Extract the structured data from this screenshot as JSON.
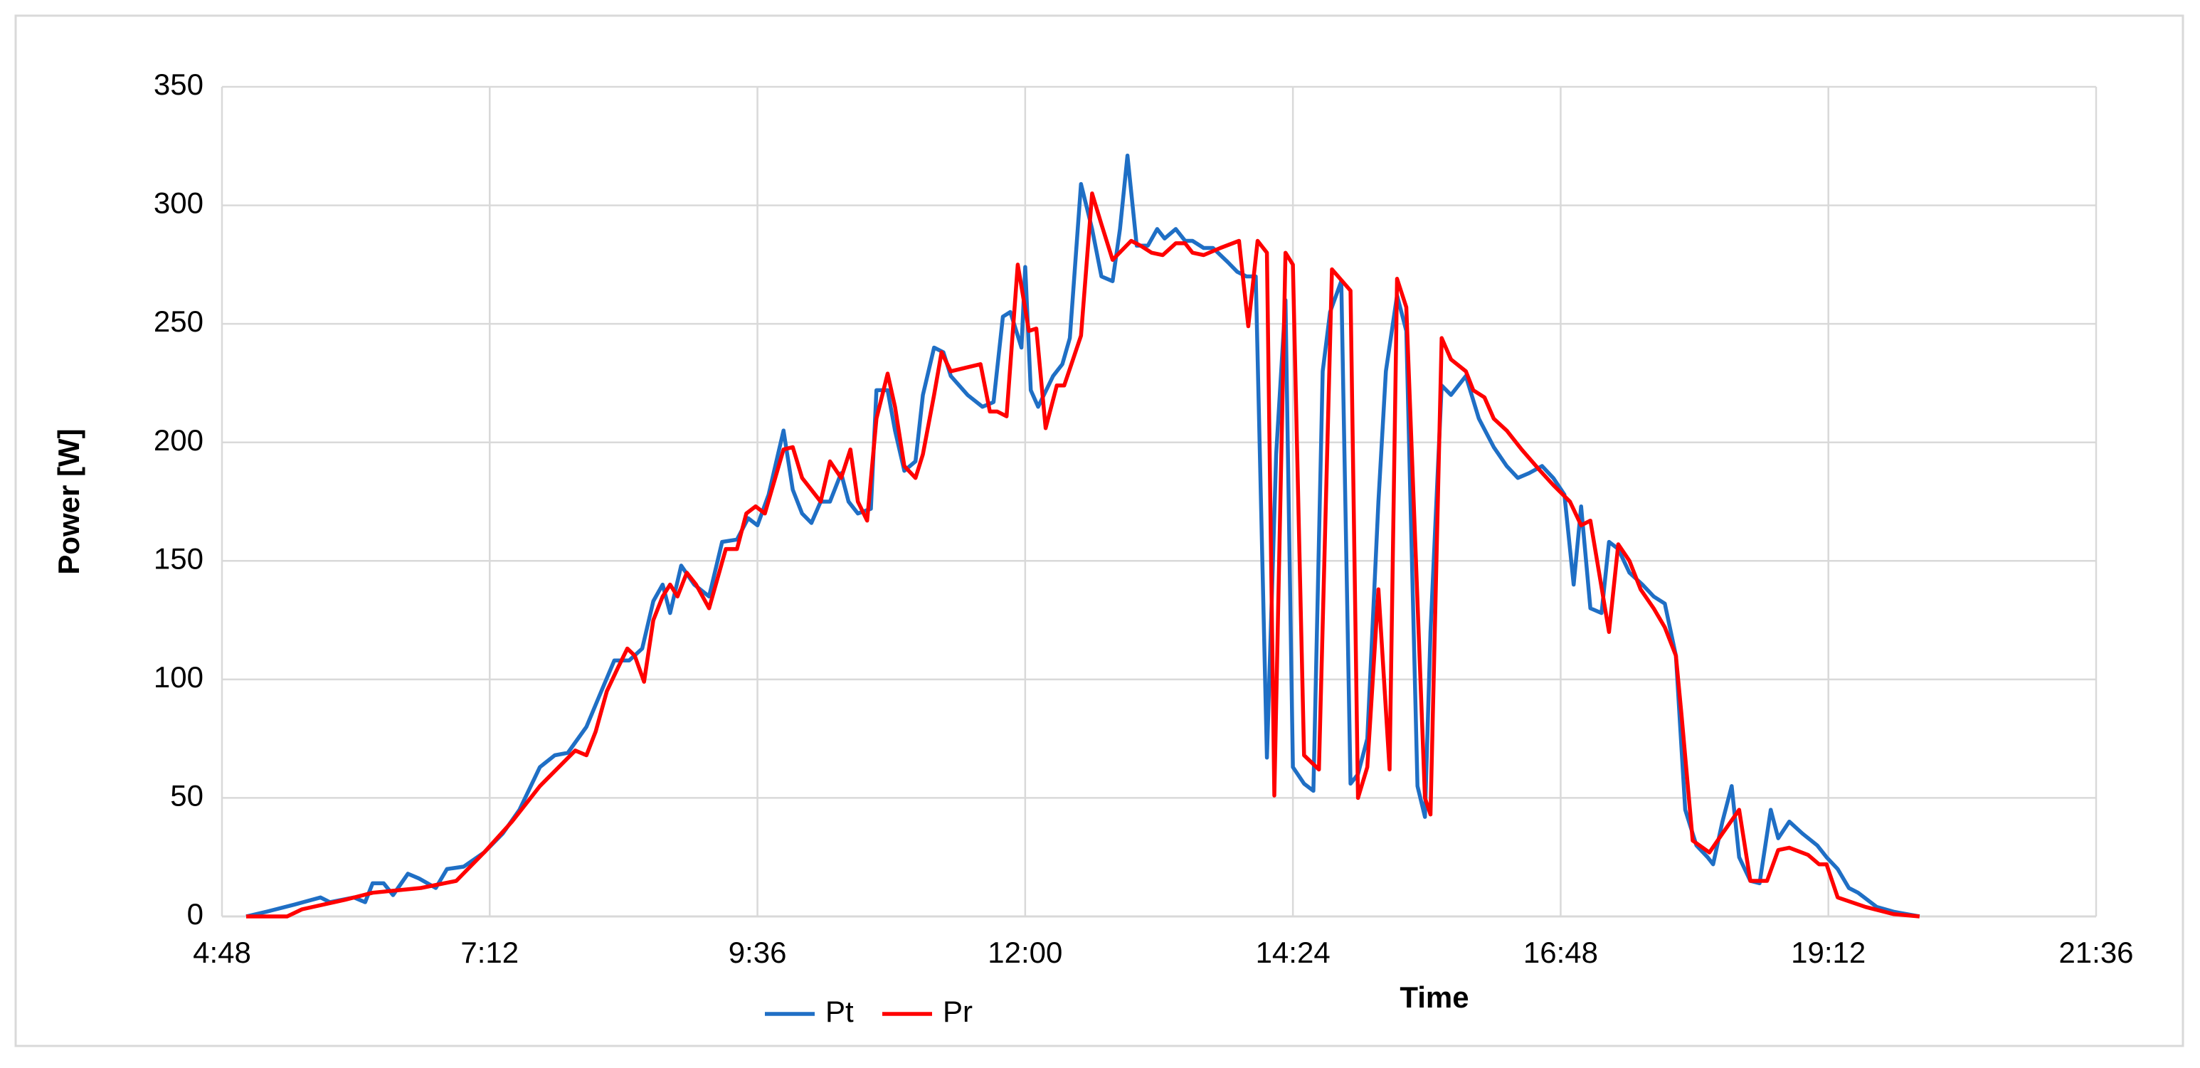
{
  "chart_data": {
    "type": "line",
    "x_label": "Time",
    "y_label": "Power [W]",
    "xlim": [
      288,
      1296
    ],
    "xticks": [
      {
        "value": 288,
        "label": "4:48"
      },
      {
        "value": 432,
        "label": "7:12"
      },
      {
        "value": 576,
        "label": "9:36"
      },
      {
        "value": 720,
        "label": "12:00"
      },
      {
        "value": 864,
        "label": "14:24"
      },
      {
        "value": 1008,
        "label": "16:48"
      },
      {
        "value": 1152,
        "label": "19:12"
      },
      {
        "value": 1296,
        "label": "21:36"
      }
    ],
    "ylim": [
      0,
      350
    ],
    "yticks": [
      0,
      50,
      100,
      150,
      200,
      250,
      300,
      350
    ],
    "grid": true,
    "legend": "bottom",
    "series": [
      {
        "name": "Pt",
        "color": "#1f6fc5",
        "x": [
          301,
          312,
          327,
          341,
          346,
          359,
          365,
          369,
          375,
          380,
          388,
          394,
          403,
          409,
          418,
          429,
          439,
          448,
          459,
          467,
          474,
          484,
          492,
          499,
          507,
          514,
          520,
          525,
          529,
          535,
          542,
          550,
          557,
          565,
          571,
          576,
          582,
          590,
          595,
          600,
          605,
          610,
          615,
          621,
          625,
          630,
          637,
          640,
          646,
          650,
          655,
          661,
          665,
          671,
          676,
          680,
          689,
          697,
          703,
          708,
          712,
          718,
          720,
          723,
          727,
          735,
          740,
          744,
          750,
          756,
          761,
          767,
          771,
          775,
          780,
          786,
          791,
          795,
          801,
          806,
          810,
          816,
          821,
          829,
          834,
          839,
          844,
          850,
          855,
          860,
          864,
          870,
          875,
          880,
          884,
          890,
          895,
          899,
          904,
          910,
          914,
          920,
          925,
          931,
          935,
          938,
          944,
          949,
          957,
          964,
          972,
          979,
          985,
          991,
          998,
          1004,
          1010,
          1015,
          1019,
          1024,
          1030,
          1034,
          1039,
          1045,
          1052,
          1058,
          1064,
          1070,
          1075,
          1081,
          1087,
          1090,
          1095,
          1100,
          1104,
          1110,
          1115,
          1121,
          1125,
          1131,
          1138,
          1146,
          1151,
          1157,
          1163,
          1168,
          1178,
          1187,
          1201
        ],
        "values": [
          0,
          2,
          5,
          8,
          6,
          8,
          6,
          14,
          14,
          9,
          18,
          16,
          12,
          20,
          21,
          27,
          35,
          45,
          63,
          68,
          69,
          80,
          95,
          108,
          108,
          113,
          133,
          140,
          128,
          148,
          140,
          135,
          158,
          159,
          168,
          165,
          178,
          205,
          180,
          170,
          166,
          175,
          175,
          187,
          175,
          170,
          172,
          222,
          222,
          205,
          188,
          192,
          220,
          240,
          238,
          228,
          220,
          215,
          217,
          253,
          255,
          240,
          274,
          222,
          215,
          228,
          233,
          244,
          309,
          290,
          270,
          268,
          290,
          321,
          283,
          283,
          290,
          286,
          290,
          285,
          285,
          282,
          282,
          276,
          272,
          270,
          270,
          67,
          195,
          260,
          63,
          56,
          53,
          230,
          255,
          268,
          56,
          60,
          75,
          175,
          230,
          262,
          247,
          55,
          42,
          120,
          224,
          220,
          228,
          210,
          198,
          190,
          185,
          187,
          190,
          185,
          178,
          140,
          173,
          130,
          128,
          158,
          155,
          145,
          140,
          135,
          132,
          110,
          45,
          30,
          25,
          22,
          40,
          55,
          25,
          15,
          14,
          45,
          33,
          40,
          35,
          30,
          25,
          20,
          12,
          10,
          4,
          2,
          0
        ]
      },
      {
        "name": "Pr",
        "color": "#ff0000",
        "x": [
          301,
          323,
          331,
          354,
          369,
          395,
          414,
          429,
          444,
          459,
          478,
          484,
          489,
          495,
          501,
          506,
          510,
          515,
          520,
          525,
          529,
          533,
          538,
          543,
          550,
          559,
          565,
          570,
          575,
          580,
          590,
          595,
          600,
          610,
          615,
          621,
          626,
          630,
          635,
          640,
          646,
          650,
          655,
          661,
          665,
          671,
          675,
          680,
          696,
          701,
          705,
          710,
          716,
          722,
          726,
          731,
          737,
          741,
          750,
          756,
          761,
          767,
          777,
          782,
          788,
          794,
          801,
          806,
          810,
          816,
          825,
          835,
          840,
          845,
          850,
          854,
          860,
          864,
          870,
          878,
          885,
          895,
          899,
          904,
          910,
          916,
          920,
          925,
          935,
          938,
          944,
          949,
          957,
          961,
          967,
          972,
          979,
          987,
          997,
          1004,
          1013,
          1019,
          1024,
          1034,
          1039,
          1045,
          1051,
          1058,
          1064,
          1070,
          1073,
          1079,
          1088,
          1095,
          1104,
          1110,
          1119,
          1125,
          1131,
          1141,
          1147,
          1151,
          1157,
          1172,
          1187,
          1201
        ],
        "values": [
          0,
          0,
          3,
          7,
          10,
          12,
          15,
          27,
          40,
          55,
          70,
          68,
          78,
          95,
          105,
          113,
          110,
          99,
          125,
          135,
          140,
          135,
          145,
          140,
          130,
          155,
          155,
          170,
          173,
          170,
          197,
          198,
          185,
          175,
          192,
          185,
          197,
          175,
          167,
          210,
          229,
          215,
          190,
          185,
          195,
          220,
          238,
          230,
          233,
          213,
          213,
          211,
          275,
          247,
          248,
          206,
          224,
          224,
          245,
          305,
          292,
          277,
          285,
          283,
          280,
          279,
          284,
          284,
          280,
          279,
          282,
          285,
          249,
          285,
          280,
          51,
          280,
          275,
          68,
          62,
          273,
          264,
          50,
          63,
          138,
          62,
          269,
          257,
          50,
          43,
          244,
          235,
          230,
          222,
          219,
          210,
          205,
          197,
          188,
          182,
          175,
          165,
          167,
          120,
          157,
          150,
          138,
          130,
          122,
          110,
          85,
          32,
          27,
          35,
          45,
          15,
          15,
          28,
          29,
          26,
          22,
          22,
          8,
          4,
          1,
          0
        ]
      }
    ]
  }
}
